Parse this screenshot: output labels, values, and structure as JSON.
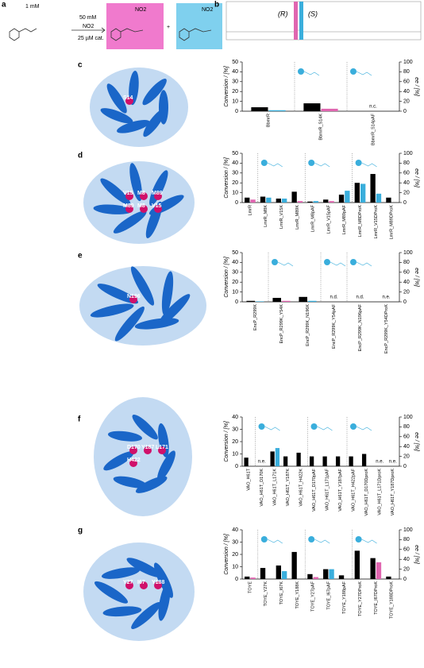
{
  "labels": {
    "panels": [
      "a",
      "b",
      "c",
      "d",
      "e",
      "f",
      "g"
    ],
    "substrate_conc": "1 mM",
    "reagent_conc": "50 mM",
    "reagent": "NO2",
    "catalyst": "25 µM cat.",
    "product_nitro_1": "NO2",
    "plus": "+",
    "product_nitro_2": "NO2",
    "enantiomer_r": "(R)",
    "enantiomer_s": "(S)",
    "residues_c": [
      "S14"
    ],
    "residues_d": [
      "V15",
      "M8",
      "M89",
      "M89",
      "M8",
      "V15"
    ],
    "residues_e": [
      "N196"
    ],
    "residues_f": [
      "D170",
      "Y187",
      "L171",
      "H422"
    ],
    "residues_g": [
      "Y27",
      "I67",
      "Y188"
    ]
  },
  "chart_data": [
    {
      "type": "bar",
      "ylabel": "Conversion / [%]",
      "y2label": "ee / [%]",
      "categories": [
        "BbmrR",
        "BbmrR_S14K",
        "BbmrR_S14pAF"
      ],
      "series": [
        {
          "color": "#000000",
          "values": [
            4,
            8,
            null
          ]
        },
        {
          "color": "#e066b0",
          "axis": "y2",
          "values": [
            null,
            5,
            null
          ]
        },
        {
          "color": "#3aaedc",
          "axis": "y2",
          "values": [
            2,
            null,
            null
          ]
        }
      ],
      "ylim": [
        0,
        50
      ],
      "yticks": [
        0,
        10,
        20,
        30,
        40,
        50
      ],
      "y2lim": [
        0,
        100
      ],
      "y2ticks": [
        0,
        20,
        40,
        60,
        80,
        100
      ],
      "annotations": [
        {
          "text": "n.c.",
          "category": "BbmrR_S14pAF"
        }
      ]
    },
    {
      "type": "bar",
      "ylabel": "Conversion / [%]",
      "y2label": "ee / [%]",
      "categories": [
        "LmrR",
        "LmrR_M8K",
        "LmrR_V15K",
        "LmrR_M89K",
        "LmrR_M8pAF",
        "LmrR_V15pAF",
        "LmrR_M89pAF",
        "LmrR_M8DProK",
        "LmrR_V15DProK",
        "LmrR_M89DProK"
      ],
      "series": [
        {
          "color": "#000000",
          "values": [
            5,
            6,
            4,
            11,
            1,
            3,
            8,
            20,
            29,
            5
          ]
        },
        {
          "color": "#e066b0",
          "axis": "y2",
          "values": [
            6,
            null,
            null,
            3,
            null,
            3,
            null,
            null,
            null,
            null
          ]
        },
        {
          "color": "#3aaedc",
          "axis": "y2",
          "values": [
            null,
            10,
            8,
            null,
            3,
            null,
            24,
            38,
            18,
            null
          ]
        }
      ],
      "ylim": [
        0,
        50
      ],
      "yticks": [
        0,
        10,
        20,
        30,
        40,
        50
      ],
      "y2lim": [
        0,
        100
      ],
      "y2ticks": [
        0,
        20,
        40,
        60,
        80,
        100
      ],
      "annotations": []
    },
    {
      "type": "bar",
      "ylabel": "Conversion / [%]",
      "y2label": "ee / [%]",
      "categories": [
        "EncP_R299K",
        "EncP_R299K_Y54K",
        "EncP_R299K_N196K",
        "EncP_R299K_Y54pAF",
        "EncP_R299K_N196pAF",
        "EncP_R299K_Y54DProK"
      ],
      "series": [
        {
          "color": "#000000",
          "values": [
            1,
            4,
            5,
            null,
            null,
            null
          ]
        },
        {
          "color": "#e066b0",
          "axis": "y2",
          "values": [
            null,
            2,
            null,
            null,
            null,
            null
          ]
        },
        {
          "color": "#3aaedc",
          "axis": "y2",
          "values": [
            1,
            null,
            2,
            null,
            null,
            null
          ]
        }
      ],
      "ylim": [
        0,
        50
      ],
      "yticks": [
        0,
        10,
        20,
        30,
        40,
        50
      ],
      "y2lim": [
        0,
        100
      ],
      "y2ticks": [
        0,
        20,
        40,
        60,
        80,
        100
      ],
      "annotations": [
        {
          "text": "n.d.",
          "category": "EncP_R299K_Y54pAF"
        },
        {
          "text": "n.d.",
          "category": "EncP_R299K_N196pAF"
        },
        {
          "text": "n.e.",
          "category": "EncP_R299K_Y54DProK"
        }
      ]
    },
    {
      "type": "bar",
      "ylabel": "Conversion / [%]",
      "y2label": "ee / [%]",
      "categories": [
        "VAO_H61T",
        "VAO_H61T_D170K",
        "VAO_H61T_L171K",
        "VAO_H61T_Y187K",
        "VAO_H61T_H422K",
        "VAO_H61T_D170pAF",
        "VAO_H61T_L171pAF",
        "VAO_H61T_Y187pAF",
        "VAO_H61T_H422pAF",
        "VAO_H61T_D170DproK",
        "VAO_H61T_L171DproK",
        "VAO_H61T_Y187DproK"
      ],
      "series": [
        {
          "color": "#000000",
          "values": [
            7,
            null,
            12,
            8,
            11,
            8,
            8,
            8,
            8,
            10,
            null,
            null
          ]
        },
        {
          "color": "#e066b0",
          "axis": "y2",
          "values": [
            null,
            null,
            null,
            null,
            null,
            null,
            null,
            null,
            null,
            null,
            null,
            null
          ]
        },
        {
          "color": "#3aaedc",
          "axis": "y2",
          "values": [
            null,
            null,
            37,
            null,
            null,
            null,
            null,
            null,
            null,
            null,
            null,
            null
          ]
        }
      ],
      "ylim": [
        0,
        40
      ],
      "yticks": [
        0,
        10,
        20,
        30,
        40
      ],
      "y2lim": [
        0,
        100
      ],
      "y2ticks": [
        0,
        20,
        40,
        60,
        80,
        100
      ],
      "annotations": [
        {
          "text": "n.e.",
          "category": "VAO_H61T_D170K"
        },
        {
          "text": "n.e.",
          "category": "VAO_H61T_L171DproK"
        },
        {
          "text": "n.e.",
          "category": "VAO_H61T_Y187DproK"
        }
      ]
    },
    {
      "type": "bar",
      "ylabel": "Conversion / [%]",
      "y2label": "ee / [%]",
      "categories": [
        "TOYE",
        "TOYE_Y27K",
        "TOYE_I67K",
        "TOYE_Y188K",
        "TOYE_Y27pAF",
        "TOYE_I67pAF",
        "TOYE_Y188pAF",
        "TOYE_Y27DProK",
        "TOYE_I67DProK",
        "TOYE_Y188DProK"
      ],
      "series": [
        {
          "color": "#000000",
          "values": [
            2,
            9,
            11,
            22,
            4,
            8,
            3,
            23,
            17,
            2
          ]
        },
        {
          "color": "#e066b0",
          "axis": "y2",
          "values": [
            3,
            null,
            null,
            null,
            4,
            null,
            null,
            null,
            34,
            null
          ]
        },
        {
          "color": "#3aaedc",
          "axis": "y2",
          "values": [
            null,
            null,
            16,
            null,
            null,
            20,
            null,
            null,
            null,
            null
          ]
        }
      ],
      "ylim": [
        0,
        40
      ],
      "yticks": [
        0,
        10,
        20,
        30,
        40
      ],
      "y2lim": [
        0,
        100
      ],
      "y2ticks": [
        0,
        20,
        40,
        60,
        80,
        100
      ],
      "annotations": []
    }
  ]
}
